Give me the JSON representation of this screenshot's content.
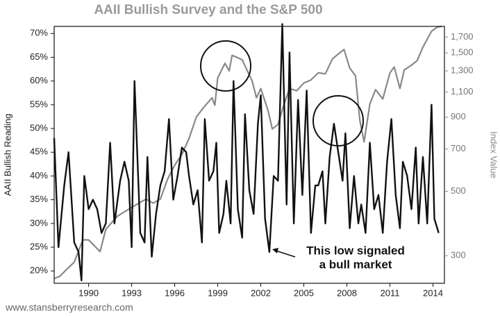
{
  "chart_data": {
    "type": "line",
    "title": "AAII Bullish Survey and the S&P 500",
    "y_label": "AAII Bullish Reading",
    "y2_label": "Index Value",
    "source": "www.stansberryresearch.com",
    "annotation": [
      "This low signaled",
      "a bull market"
    ],
    "xlim": [
      1987.6,
      2014.8
    ],
    "xticks": [
      1990,
      1993,
      1996,
      1999,
      2002,
      2005,
      2008,
      2011,
      2014
    ],
    "ylim": [
      17.4,
      71.5
    ],
    "yticks": [
      {
        "value": 20,
        "label": "20%"
      },
      {
        "value": 25,
        "label": "25%"
      },
      {
        "value": 30,
        "label": "30%"
      },
      {
        "value": 35,
        "label": "35%"
      },
      {
        "value": 40,
        "label": "40%"
      },
      {
        "value": 45,
        "label": "45%"
      },
      {
        "value": 50,
        "label": "50%"
      },
      {
        "value": 55,
        "label": "55%"
      },
      {
        "value": 60,
        "label": "60%"
      },
      {
        "value": 65,
        "label": "65%"
      },
      {
        "value": 70,
        "label": "70%"
      }
    ],
    "y2lim": [
      241,
      1850
    ],
    "y2log": true,
    "y2ticks": [
      300,
      500,
      700,
      900,
      {
        "value": 1100,
        "label": "1,100"
      },
      {
        "value": 1300,
        "label": "1,300"
      },
      {
        "value": 1500,
        "label": "1,500"
      },
      {
        "value": 1700,
        "label": "1,700"
      }
    ],
    "series": [
      {
        "color": "#888888",
        "axis": "y2",
        "x": [
          1987.6,
          1988.0,
          1988.5,
          1989.0,
          1989.6,
          1990.0,
          1990.8,
          1991.2,
          1992.0,
          1993.0,
          1994.0,
          1994.5,
          1995.0,
          1995.5,
          1996.0,
          1996.5,
          1997.0,
          1997.5,
          1998.0,
          1998.6,
          1998.8,
          1999.0,
          1999.5,
          1999.8,
          2000.0,
          2000.3,
          2000.7,
          2001.0,
          2001.4,
          2001.7,
          2002.0,
          2002.5,
          2002.8,
          2003.2,
          2003.6,
          2004.0,
          2004.5,
          2005.0,
          2005.5,
          2006.0,
          2006.5,
          2007.0,
          2007.5,
          2007.8,
          2008.2,
          2008.6,
          2008.9,
          2009.2,
          2009.6,
          2010.0,
          2010.5,
          2011.0,
          2011.3,
          2011.7,
          2012.0,
          2012.5,
          2012.9,
          2013.3,
          2013.9,
          2014.3,
          2014.6
        ],
        "values": [
          250,
          255,
          270,
          285,
          340,
          340,
          310,
          370,
          410,
          440,
          470,
          455,
          470,
          550,
          615,
          670,
          760,
          900,
          970,
          1050,
          990,
          1230,
          1380,
          1300,
          1470,
          1450,
          1420,
          1320,
          1200,
          1050,
          1130,
          950,
          820,
          850,
          990,
          1130,
          1110,
          1180,
          1210,
          1280,
          1270,
          1430,
          1500,
          1540,
          1330,
          1250,
          880,
          740,
          1000,
          1120,
          1040,
          1280,
          1340,
          1130,
          1310,
          1360,
          1410,
          1570,
          1780,
          1840,
          1850
        ]
      },
      {
        "color": "#111111",
        "x": [
          1987.6,
          1987.9,
          1988.3,
          1988.6,
          1989.0,
          1989.3,
          1989.5,
          1989.7,
          1990.0,
          1990.3,
          1990.6,
          1990.9,
          1991.2,
          1991.5,
          1991.8,
          1992.2,
          1992.5,
          1992.8,
          1993.0,
          1993.2,
          1993.6,
          1993.9,
          1994.1,
          1994.4,
          1994.7,
          1995.0,
          1995.3,
          1995.6,
          1995.9,
          1996.2,
          1996.5,
          1996.8,
          1997.0,
          1997.3,
          1997.6,
          1997.9,
          1998.1,
          1998.4,
          1998.7,
          1998.9,
          1999.1,
          1999.4,
          1999.6,
          1999.9,
          2000.1,
          2000.4,
          2000.7,
          2000.9,
          2001.2,
          2001.5,
          2001.8,
          2002.0,
          2002.3,
          2002.6,
          2002.9,
          2003.2,
          2003.5,
          2003.8,
          2004.0,
          2004.3,
          2004.6,
          2004.9,
          2005.2,
          2005.5,
          2005.8,
          2006.0,
          2006.3,
          2006.5,
          2006.8,
          2007.1,
          2007.4,
          2007.7,
          2007.9,
          2008.2,
          2008.5,
          2008.8,
          2009.0,
          2009.3,
          2009.6,
          2009.9,
          2010.2,
          2010.5,
          2010.8,
          2011.1,
          2011.4,
          2011.7,
          2011.9,
          2012.2,
          2012.5,
          2012.8,
          2013.0,
          2013.3,
          2013.6,
          2013.9,
          2014.1,
          2014.4
        ],
        "values": [
          48,
          25,
          38,
          45,
          26,
          24,
          18,
          40,
          33,
          35,
          33,
          28,
          30,
          47,
          30,
          39,
          43,
          39,
          25,
          60,
          28,
          26,
          44,
          23,
          32,
          38,
          41,
          52,
          35,
          40,
          46,
          45,
          40,
          34,
          37,
          26,
          52,
          39,
          41,
          47,
          28,
          32,
          39,
          30,
          60,
          33,
          27,
          53,
          37,
          32,
          51,
          57,
          31,
          24,
          40,
          39,
          72,
          34,
          66,
          30,
          56,
          36,
          58,
          28,
          38,
          38,
          41,
          30,
          44,
          51,
          45,
          39,
          49,
          29,
          40,
          30,
          34,
          28,
          47,
          33,
          36,
          28,
          43,
          52,
          36,
          29,
          43,
          40,
          33,
          46,
          30,
          44,
          30,
          55,
          31,
          28
        ]
      }
    ]
  }
}
